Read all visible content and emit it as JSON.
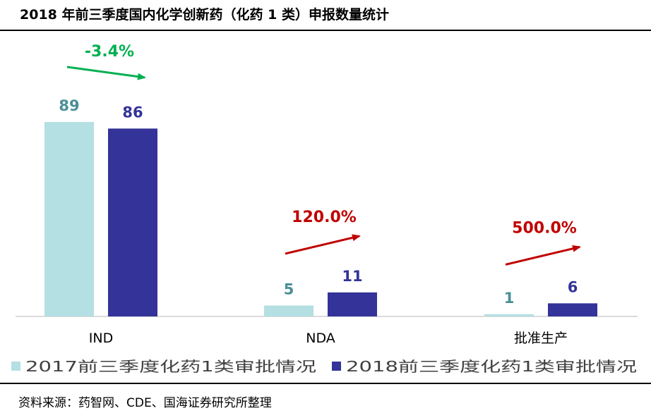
{
  "title": "2018 年前三季度国内化学创新药（化药 1 类）申报数量统计",
  "source": "资料来源：药智网、CDE、国海证券研究所整理",
  "chart_data": {
    "type": "bar",
    "title": "2018 年前三季度国内化学创新药（化药 1 类）申报数量统计",
    "categories": [
      "IND",
      "NDA",
      "批准生产"
    ],
    "series": [
      {
        "name": "2017前三季度化药1类审批情况",
        "values": [
          89,
          5,
          1
        ],
        "color": "#b4dfe3"
      },
      {
        "name": "2018前三季度化药1类审批情况",
        "values": [
          86,
          11,
          6
        ],
        "color": "#333399"
      }
    ],
    "annotations": [
      {
        "category": "IND",
        "text": "-3.4%",
        "color": "#00b050"
      },
      {
        "category": "NDA",
        "text": "120.0%",
        "color": "#c00000"
      },
      {
        "category": "批准生产",
        "text": "500.0%",
        "color": "#c00000"
      }
    ],
    "ylim": [
      0,
      100
    ],
    "grid": false,
    "legend": "bottom-left",
    "label_colors": [
      "#4a8f98",
      "#333399"
    ]
  }
}
